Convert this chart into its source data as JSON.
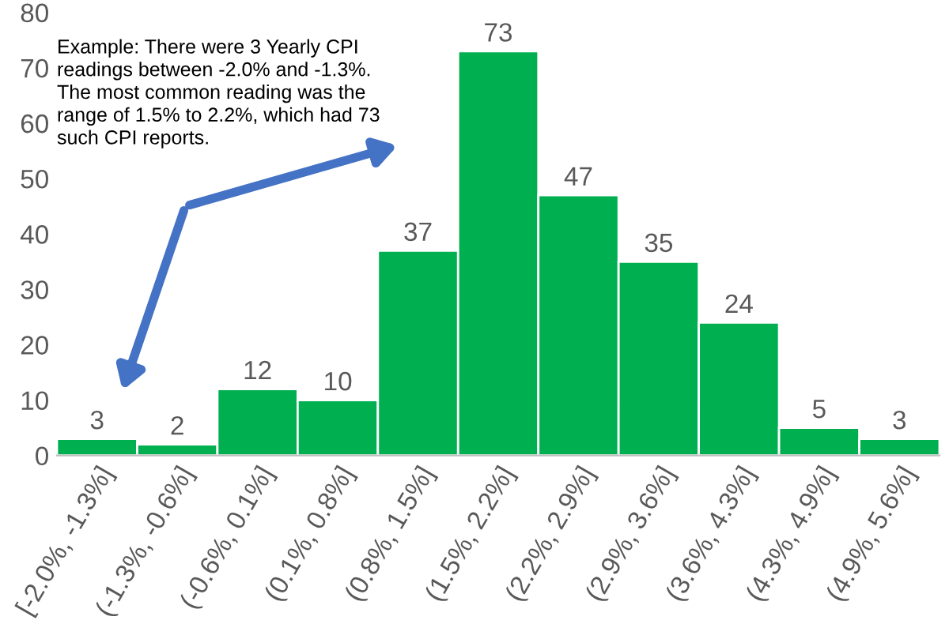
{
  "chart_data": {
    "type": "bar",
    "categories": [
      "[-2.0%, -1.3%]",
      "(-1.3%, -0.6%]",
      "(-0.6%, 0.1%]",
      "(0.1%, 0.8%]",
      "(0.8%, 1.5%]",
      "(1.5%, 2.2%]",
      "(2.2%, 2.9%]",
      "(2.9%, 3.6%]",
      "(3.6%, 4.3%]",
      "(4.3%, 4.9%]",
      "(4.9%, 5.6%]"
    ],
    "values": [
      3,
      2,
      12,
      10,
      37,
      73,
      47,
      35,
      24,
      5,
      3
    ],
    "color": "#00b050",
    "ylim": [
      0,
      80
    ],
    "yticks": [
      0,
      10,
      20,
      30,
      40,
      50,
      60,
      70,
      80
    ],
    "data_labels": true,
    "grid": false,
    "annotations": [
      "Example: There were 3 Yearly CPI\nreadings between -2.0% and -1.3%.\nThe most common reading was the\nrange of 1.5% to 2.2%, which had 73\nsuch CPI reports."
    ]
  }
}
